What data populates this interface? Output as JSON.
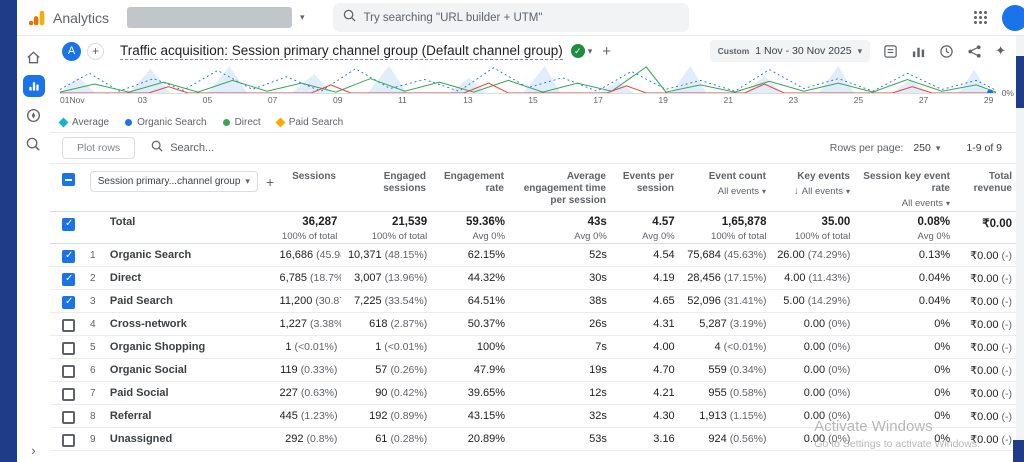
{
  "colors": {
    "accent": "#1a73e8",
    "navy_strip": "#1f3c88",
    "logo_orange": "#f9ab00",
    "logo_dark_orange": "#e37400",
    "green_check": "#1e8e3e"
  },
  "icons": {
    "caret_down": "▾",
    "plus": "+",
    "check": "✓",
    "sort_down_arrow": "↓",
    "chevron_right": "›",
    "sparkle": "✦"
  },
  "topbar": {
    "brand": "Analytics",
    "search_placeholder": "Try searching \"URL builder + UTM\""
  },
  "report_header": {
    "comparison_badge": "A",
    "title": "Traffic acquisition: Session primary channel group (Default channel group)",
    "date_label": "Custom",
    "date_range": "1 Nov - 30 Nov 2025"
  },
  "chart": {
    "x_labels": [
      "01",
      "03",
      "05",
      "07",
      "09",
      "11",
      "13",
      "15",
      "17",
      "19",
      "21",
      "23",
      "25",
      "27",
      "29"
    ],
    "month_label": "Nov",
    "right_axis_label": "0%",
    "legend": [
      {
        "label": "Average",
        "shape": "diamond",
        "color": "#12b5cb"
      },
      {
        "label": "Organic Search",
        "shape": "circle",
        "color": "#1a73e8"
      },
      {
        "label": "Direct",
        "shape": "circle",
        "color": "#34a853"
      },
      {
        "label": "Paid Search",
        "shape": "diamond",
        "color": "#f9ab00"
      }
    ]
  },
  "toolbar": {
    "plot_rows_label": "Plot rows",
    "search_placeholder": "Search...",
    "rows_per_page_label": "Rows per page:",
    "rows_per_page_value": "250",
    "pagination": "1-9 of 9"
  },
  "table": {
    "dimension_selector": "Session primary...channel group",
    "columns": [
      {
        "label": "Sessions"
      },
      {
        "label": "Engaged sessions"
      },
      {
        "label": "Engagement rate"
      },
      {
        "label": "Average engagement time per session"
      },
      {
        "label": "Events per session"
      },
      {
        "label": "Event count",
        "filter": "All events"
      },
      {
        "label": "Key events",
        "filter": "All events",
        "sorted": true
      },
      {
        "label": "Session key event rate",
        "filter": "All events"
      },
      {
        "label": "Total revenue"
      }
    ],
    "total": {
      "label": "Total",
      "checked": true,
      "cells": [
        [
          "36,287",
          "100% of total"
        ],
        [
          "21,539",
          "100% of total"
        ],
        [
          "59.36%",
          "Avg 0%"
        ],
        [
          "43s",
          "Avg 0%"
        ],
        [
          "4.57",
          "Avg 0%"
        ],
        [
          "1,65,878",
          "100% of total"
        ],
        [
          "35.00",
          "100% of total"
        ],
        [
          "0.08%",
          "Avg 0%"
        ],
        [
          "₹0.00",
          ""
        ]
      ]
    },
    "rows": [
      {
        "num": "1",
        "checked": true,
        "name": "Organic Search",
        "cells": [
          [
            "16,686",
            "(45.98%)"
          ],
          [
            "10,371",
            "(48.15%)"
          ],
          [
            "62.15%",
            ""
          ],
          [
            "52s",
            ""
          ],
          [
            "4.54",
            ""
          ],
          [
            "75,684",
            "(45.63%)"
          ],
          [
            "26.00",
            "(74.29%)"
          ],
          [
            "0.13%",
            ""
          ],
          [
            "₹0.00",
            "(-)"
          ]
        ]
      },
      {
        "num": "2",
        "checked": true,
        "name": "Direct",
        "cells": [
          [
            "6,785",
            "(18.7%)"
          ],
          [
            "3,007",
            "(13.96%)"
          ],
          [
            "44.32%",
            ""
          ],
          [
            "30s",
            ""
          ],
          [
            "4.19",
            ""
          ],
          [
            "28,456",
            "(17.15%)"
          ],
          [
            "4.00",
            "(11.43%)"
          ],
          [
            "0.04%",
            ""
          ],
          [
            "₹0.00",
            "(-)"
          ]
        ]
      },
      {
        "num": "3",
        "checked": true,
        "name": "Paid Search",
        "cells": [
          [
            "11,200",
            "(30.87%)"
          ],
          [
            "7,225",
            "(33.54%)"
          ],
          [
            "64.51%",
            ""
          ],
          [
            "38s",
            ""
          ],
          [
            "4.65",
            ""
          ],
          [
            "52,096",
            "(31.41%)"
          ],
          [
            "5.00",
            "(14.29%)"
          ],
          [
            "0.04%",
            ""
          ],
          [
            "₹0.00",
            "(-)"
          ]
        ]
      },
      {
        "num": "4",
        "checked": false,
        "name": "Cross-network",
        "cells": [
          [
            "1,227",
            "(3.38%)"
          ],
          [
            "618",
            "(2.87%)"
          ],
          [
            "50.37%",
            ""
          ],
          [
            "26s",
            ""
          ],
          [
            "4.31",
            ""
          ],
          [
            "5,287",
            "(3.19%)"
          ],
          [
            "0.00",
            "(0%)"
          ],
          [
            "0%",
            ""
          ],
          [
            "₹0.00",
            "(-)"
          ]
        ]
      },
      {
        "num": "5",
        "checked": false,
        "name": "Organic Shopping",
        "cells": [
          [
            "1",
            "(<0.01%)"
          ],
          [
            "1",
            "(<0.01%)"
          ],
          [
            "100%",
            ""
          ],
          [
            "7s",
            ""
          ],
          [
            "4.00",
            ""
          ],
          [
            "4",
            "(<0.01%)"
          ],
          [
            "0.00",
            "(0%)"
          ],
          [
            "0%",
            ""
          ],
          [
            "₹0.00",
            "(-)"
          ]
        ]
      },
      {
        "num": "6",
        "checked": false,
        "name": "Organic Social",
        "cells": [
          [
            "119",
            "(0.33%)"
          ],
          [
            "57",
            "(0.26%)"
          ],
          [
            "47.9%",
            ""
          ],
          [
            "19s",
            ""
          ],
          [
            "4.70",
            ""
          ],
          [
            "559",
            "(0.34%)"
          ],
          [
            "0.00",
            "(0%)"
          ],
          [
            "0%",
            ""
          ],
          [
            "₹0.00",
            "(-)"
          ]
        ]
      },
      {
        "num": "7",
        "checked": false,
        "name": "Paid Social",
        "cells": [
          [
            "227",
            "(0.63%)"
          ],
          [
            "90",
            "(0.42%)"
          ],
          [
            "39.65%",
            ""
          ],
          [
            "12s",
            ""
          ],
          [
            "4.21",
            ""
          ],
          [
            "955",
            "(0.58%)"
          ],
          [
            "0.00",
            "(0%)"
          ],
          [
            "0%",
            ""
          ],
          [
            "₹0.00",
            "(-)"
          ]
        ]
      },
      {
        "num": "8",
        "checked": false,
        "name": "Referral",
        "cells": [
          [
            "445",
            "(1.23%)"
          ],
          [
            "192",
            "(0.89%)"
          ],
          [
            "43.15%",
            ""
          ],
          [
            "32s",
            ""
          ],
          [
            "4.30",
            ""
          ],
          [
            "1,913",
            "(1.15%)"
          ],
          [
            "0.00",
            "(0%)"
          ],
          [
            "0%",
            ""
          ],
          [
            "₹0.00",
            "(-)"
          ]
        ]
      },
      {
        "num": "9",
        "checked": false,
        "name": "Unassigned",
        "cells": [
          [
            "292",
            "(0.8%)"
          ],
          [
            "61",
            "(0.28%)"
          ],
          [
            "20.89%",
            ""
          ],
          [
            "53s",
            ""
          ],
          [
            "3.16",
            ""
          ],
          [
            "924",
            "(0.56%)"
          ],
          [
            "0.00",
            "(0%)"
          ],
          [
            "0%",
            ""
          ],
          [
            "₹0.00",
            "(-)"
          ]
        ]
      }
    ]
  },
  "watermark": {
    "line1": "Activate Windows",
    "line2": "Go to Settings to activate Windows."
  }
}
